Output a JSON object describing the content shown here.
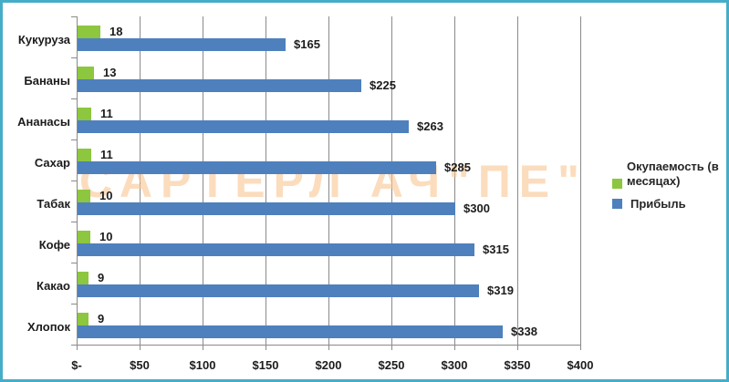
{
  "frame": {
    "border_color": "#46ADC8",
    "background_color": "#FFFFFF"
  },
  "watermark": {
    "text": "САРТЕРЛ АЧ\"ПЕ\"",
    "color": "#F9C794"
  },
  "chart_data": {
    "type": "bar",
    "orientation": "horizontal",
    "title": "",
    "xlabel": "",
    "ylabel": "",
    "categories": [
      "Кукуруза",
      "Бананы",
      "Ананасы",
      "Сахар",
      "Табак",
      "Кофе",
      "Какао",
      "Хлопок"
    ],
    "series": [
      {
        "name": "Окупаемость (в месяцах)",
        "color": "#8DC63F",
        "values": [
          18,
          13,
          11,
          11,
          10,
          10,
          9,
          9
        ],
        "data_labels": [
          "18",
          "13",
          "11",
          "11",
          "10",
          "10",
          "9",
          "9"
        ]
      },
      {
        "name": "Прибыль",
        "color": "#4E80BD",
        "values": [
          165,
          225,
          263,
          285,
          300,
          315,
          319,
          338
        ],
        "data_labels": [
          "$165",
          "$225",
          "$263",
          "$285",
          "$300",
          "$315",
          "$319",
          "$338"
        ]
      }
    ],
    "xlim": [
      0,
      400
    ],
    "x_ticks": [
      {
        "value": 0,
        "label": "$-"
      },
      {
        "value": 50,
        "label": "$50"
      },
      {
        "value": 100,
        "label": "$100"
      },
      {
        "value": 150,
        "label": "$150"
      },
      {
        "value": 200,
        "label": "$200"
      },
      {
        "value": 250,
        "label": "$250"
      },
      {
        "value": 300,
        "label": "$300"
      },
      {
        "value": 350,
        "label": "$350"
      },
      {
        "value": 400,
        "label": "$400"
      }
    ],
    "grid": true,
    "gridline_color": "#8A8A8A",
    "legend_position": "right"
  },
  "legend": {
    "items": [
      {
        "label": "Окупаемость (в месяцах)",
        "color": "#8DC63F"
      },
      {
        "label": "Прибыль",
        "color": "#4E80BD"
      }
    ]
  }
}
